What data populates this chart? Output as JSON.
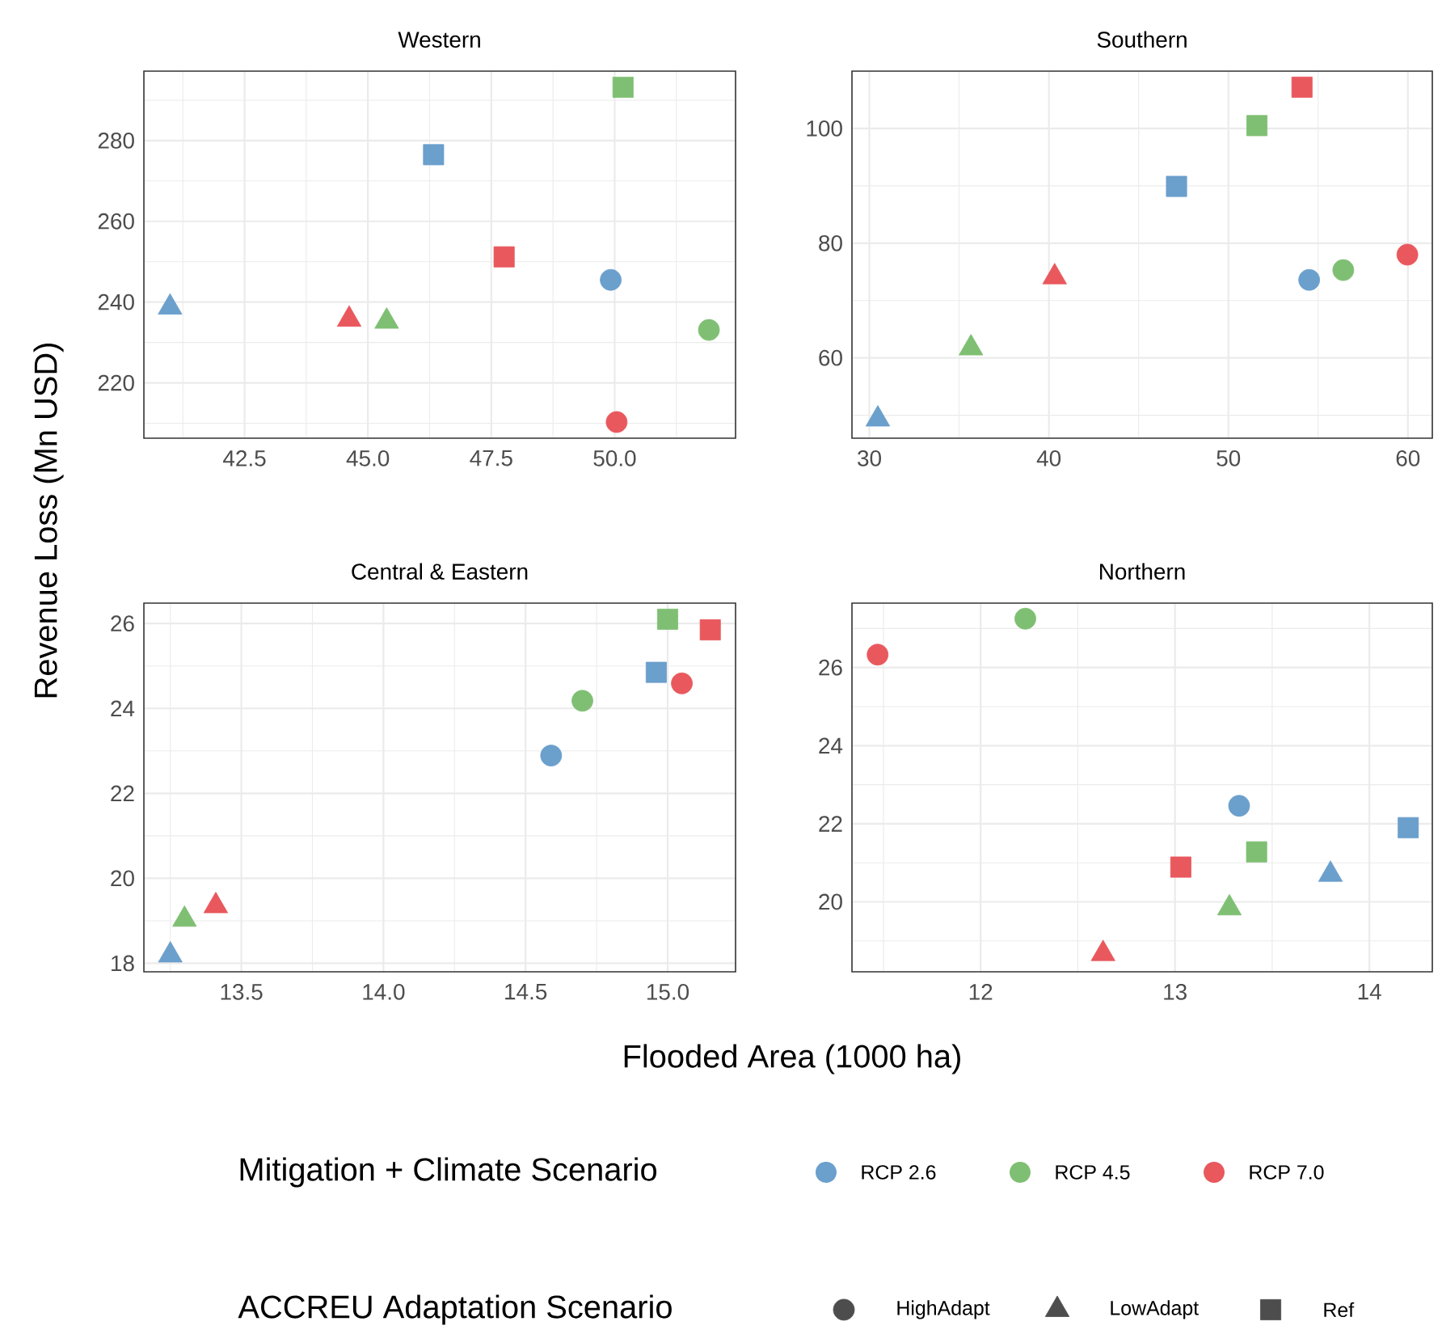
{
  "chart_data": [
    {
      "type": "scatter",
      "title": "Western",
      "xlabel": "Flooded Area (1000 ha)",
      "ylabel": "Revenue Loss (Mn USD)",
      "legend": "bottom",
      "legend_title": "Mitigation + Climate Scenario",
      "annotations": [
        "ACCREU Adaptation Scenario",
        "HighAdapt",
        "LowAdapt",
        "Ref"
      ],
      "grid": true,
      "xlim": [
        40.46,
        52.45
      ],
      "ylim": [
        206.3,
        297.2
      ],
      "xticks": [
        {
          "value": 42.5,
          "label": "42.5"
        },
        {
          "value": 45,
          "label": "45.0"
        },
        {
          "value": 47.5,
          "label": "47.5"
        },
        {
          "value": 50,
          "label": "50.0"
        }
      ],
      "yticks": [
        220,
        240,
        260,
        280
      ],
      "series": [
        {
          "name": "RCP 2.6",
          "color": "#6b9fcc",
          "marker": "circle",
          "x": [
            49.92
          ],
          "values": [
            245.5
          ]
        },
        {
          "color": "#6b9fcc",
          "marker": "triangle",
          "x": [
            40.99
          ],
          "values": [
            238.7
          ]
        },
        {
          "color": "#6b9fcc",
          "marker": "square",
          "x": [
            46.33
          ],
          "values": [
            276.5
          ]
        },
        {
          "name": "RCP 4.5",
          "color": "#7fbf73",
          "marker": "circle",
          "x": [
            51.91
          ],
          "values": [
            233.1
          ]
        },
        {
          "color": "#7fbf73",
          "marker": "triangle",
          "x": [
            45.38
          ],
          "values": [
            235.2
          ]
        },
        {
          "color": "#7fbf73",
          "marker": "square",
          "x": [
            50.17
          ],
          "values": [
            293.2
          ]
        },
        {
          "name": "RCP 7.0",
          "color": "#e8585d",
          "marker": "circle",
          "x": [
            50.04
          ],
          "values": [
            210.3
          ]
        },
        {
          "color": "#e8585d",
          "marker": "triangle",
          "x": [
            44.62
          ],
          "values": [
            235.7
          ]
        },
        {
          "color": "#e8585d",
          "marker": "square",
          "x": [
            47.76
          ],
          "values": [
            251.2
          ]
        }
      ]
    },
    {
      "type": "scatter",
      "title": "Southern",
      "grid": true,
      "xlim": [
        29.03,
        61.36
      ],
      "ylim": [
        46.0,
        110.0
      ],
      "xticks": [
        30,
        40,
        50,
        60
      ],
      "yticks": [
        60,
        80,
        100
      ],
      "series": [
        {
          "color": "#6b9fcc",
          "marker": "circle",
          "x": [
            54.5
          ],
          "values": [
            73.6
          ]
        },
        {
          "color": "#6b9fcc",
          "marker": "triangle",
          "x": [
            30.47
          ],
          "values": [
            49.3
          ]
        },
        {
          "color": "#6b9fcc",
          "marker": "square",
          "x": [
            47.11
          ],
          "values": [
            89.9
          ]
        },
        {
          "color": "#7fbf73",
          "marker": "circle",
          "x": [
            56.4
          ],
          "values": [
            75.3
          ]
        },
        {
          "color": "#7fbf73",
          "marker": "triangle",
          "x": [
            35.66
          ],
          "values": [
            61.7
          ]
        },
        {
          "color": "#7fbf73",
          "marker": "square",
          "x": [
            51.59
          ],
          "values": [
            100.5
          ]
        },
        {
          "color": "#e8585d",
          "marker": "circle",
          "x": [
            59.97
          ],
          "values": [
            78.0
          ]
        },
        {
          "color": "#e8585d",
          "marker": "triangle",
          "x": [
            40.32
          ],
          "values": [
            74.1
          ]
        },
        {
          "color": "#e8585d",
          "marker": "square",
          "x": [
            54.1
          ],
          "values": [
            107.2
          ]
        }
      ]
    },
    {
      "type": "scatter",
      "title": "Central & Eastern",
      "grid": true,
      "xlim": [
        13.157,
        15.239
      ],
      "ylim": [
        17.8,
        26.48
      ],
      "xticks": [
        {
          "value": 13.5,
          "label": "13.5"
        },
        {
          "value": 14,
          "label": "14.0"
        },
        {
          "value": 14.5,
          "label": "14.5"
        },
        {
          "value": 15,
          "label": "15.0"
        }
      ],
      "yticks": [
        18,
        20,
        22,
        24,
        26
      ],
      "series": [
        {
          "color": "#6b9fcc",
          "marker": "circle",
          "x": [
            14.59
          ],
          "values": [
            22.89
          ]
        },
        {
          "color": "#6b9fcc",
          "marker": "triangle",
          "x": [
            13.25
          ],
          "values": [
            18.19
          ]
        },
        {
          "color": "#6b9fcc",
          "marker": "square",
          "x": [
            14.96
          ],
          "values": [
            24.85
          ]
        },
        {
          "color": "#7fbf73",
          "marker": "circle",
          "x": [
            14.7
          ],
          "values": [
            24.18
          ]
        },
        {
          "color": "#7fbf73",
          "marker": "triangle",
          "x": [
            13.3
          ],
          "values": [
            19.03
          ]
        },
        {
          "color": "#7fbf73",
          "marker": "square",
          "x": [
            15.0
          ],
          "values": [
            26.1
          ]
        },
        {
          "color": "#e8585d",
          "marker": "circle",
          "x": [
            15.05
          ],
          "values": [
            24.59
          ]
        },
        {
          "color": "#e8585d",
          "marker": "triangle",
          "x": [
            13.41
          ],
          "values": [
            19.35
          ]
        },
        {
          "color": "#e8585d",
          "marker": "square",
          "x": [
            15.15
          ],
          "values": [
            25.85
          ]
        }
      ]
    },
    {
      "type": "scatter",
      "title": "Northern",
      "grid": true,
      "xlim": [
        11.338,
        14.324
      ],
      "ylim": [
        18.21,
        27.65
      ],
      "xticks": [
        12,
        13,
        14
      ],
      "yticks": [
        20,
        22,
        24,
        26
      ],
      "series": [
        {
          "color": "#6b9fcc",
          "marker": "circle",
          "x": [
            13.33
          ],
          "values": [
            22.46
          ]
        },
        {
          "color": "#6b9fcc",
          "marker": "triangle",
          "x": [
            13.8
          ],
          "values": [
            20.7
          ]
        },
        {
          "color": "#6b9fcc",
          "marker": "square",
          "x": [
            14.2
          ],
          "values": [
            21.9
          ]
        },
        {
          "color": "#7fbf73",
          "marker": "circle",
          "x": [
            12.23
          ],
          "values": [
            27.25
          ]
        },
        {
          "color": "#7fbf73",
          "marker": "triangle",
          "x": [
            13.28
          ],
          "values": [
            19.84
          ]
        },
        {
          "color": "#7fbf73",
          "marker": "square",
          "x": [
            13.42
          ],
          "values": [
            21.28
          ]
        },
        {
          "color": "#e8585d",
          "marker": "circle",
          "x": [
            11.47
          ],
          "values": [
            26.33
          ]
        },
        {
          "color": "#e8585d",
          "marker": "triangle",
          "x": [
            12.63
          ],
          "values": [
            18.67
          ]
        },
        {
          "color": "#e8585d",
          "marker": "square",
          "x": [
            13.03
          ],
          "values": [
            20.89
          ]
        }
      ]
    }
  ]
}
